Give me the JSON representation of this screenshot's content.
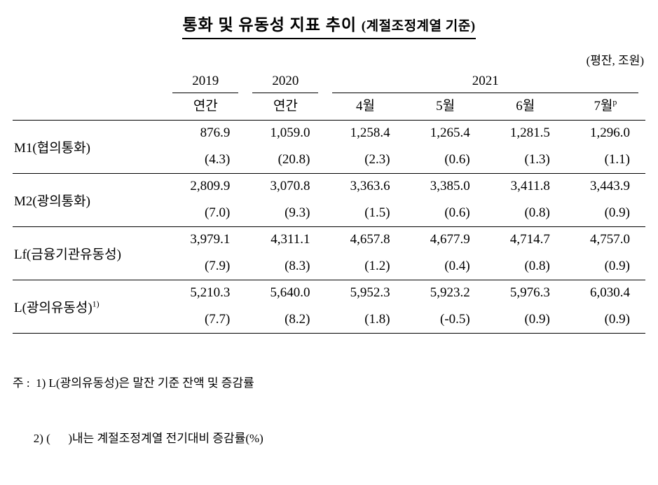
{
  "title": {
    "main": "통화 및 유동성 지표 추이 ",
    "sub": "(계절조정계열 기준)"
  },
  "unit_note": "(평잔, 조원)",
  "table": {
    "col_groups": [
      {
        "label": "2019",
        "span": 1
      },
      {
        "label": "2020",
        "span": 1
      },
      {
        "label": "2021",
        "span": 4
      }
    ],
    "sub_headers": [
      {
        "label": "연간"
      },
      {
        "label": "연간"
      },
      {
        "label": "4월"
      },
      {
        "label": "5월"
      },
      {
        "label": "6월"
      },
      {
        "label": "7월",
        "sup": "p"
      }
    ],
    "rows": [
      {
        "label": "M1(협의통화)",
        "values": [
          "876.9",
          "1,059.0",
          "1,258.4",
          "1,265.4",
          "1,281.5",
          "1,296.0"
        ],
        "changes": [
          "(4.3)",
          "(20.8)",
          "(2.3)",
          "(0.6)",
          "(1.3)",
          "(1.1)"
        ]
      },
      {
        "label": "M2(광의통화)",
        "values": [
          "2,809.9",
          "3,070.8",
          "3,363.6",
          "3,385.0",
          "3,411.8",
          "3,443.9"
        ],
        "changes": [
          "(7.0)",
          "(9.3)",
          "(1.5)",
          "(0.6)",
          "(0.8)",
          "(0.9)"
        ]
      },
      {
        "label": "Lf(금융기관유동성)",
        "values": [
          "3,979.1",
          "4,311.1",
          "4,657.8",
          "4,677.9",
          "4,714.7",
          "4,757.0"
        ],
        "changes": [
          "(7.9)",
          "(8.3)",
          "(1.2)",
          "(0.4)",
          "(0.8)",
          "(0.9)"
        ]
      },
      {
        "label": "L(광의유동성)",
        "label_sup": "1)",
        "values": [
          "5,210.3",
          "5,640.0",
          "5,952.3",
          "5,923.2",
          "5,976.3",
          "6,030.4"
        ],
        "changes": [
          "(7.7)",
          "(8.2)",
          "(1.8)",
          "(-0.5)",
          "(0.9)",
          "(0.9)"
        ]
      }
    ]
  },
  "footnotes": [
    "주 :  1) L(광의유동성)은 말잔 기준 잔액 및 증감률",
    "       2) (      )내는 계절조정계열 전기대비 증감률(%)"
  ]
}
